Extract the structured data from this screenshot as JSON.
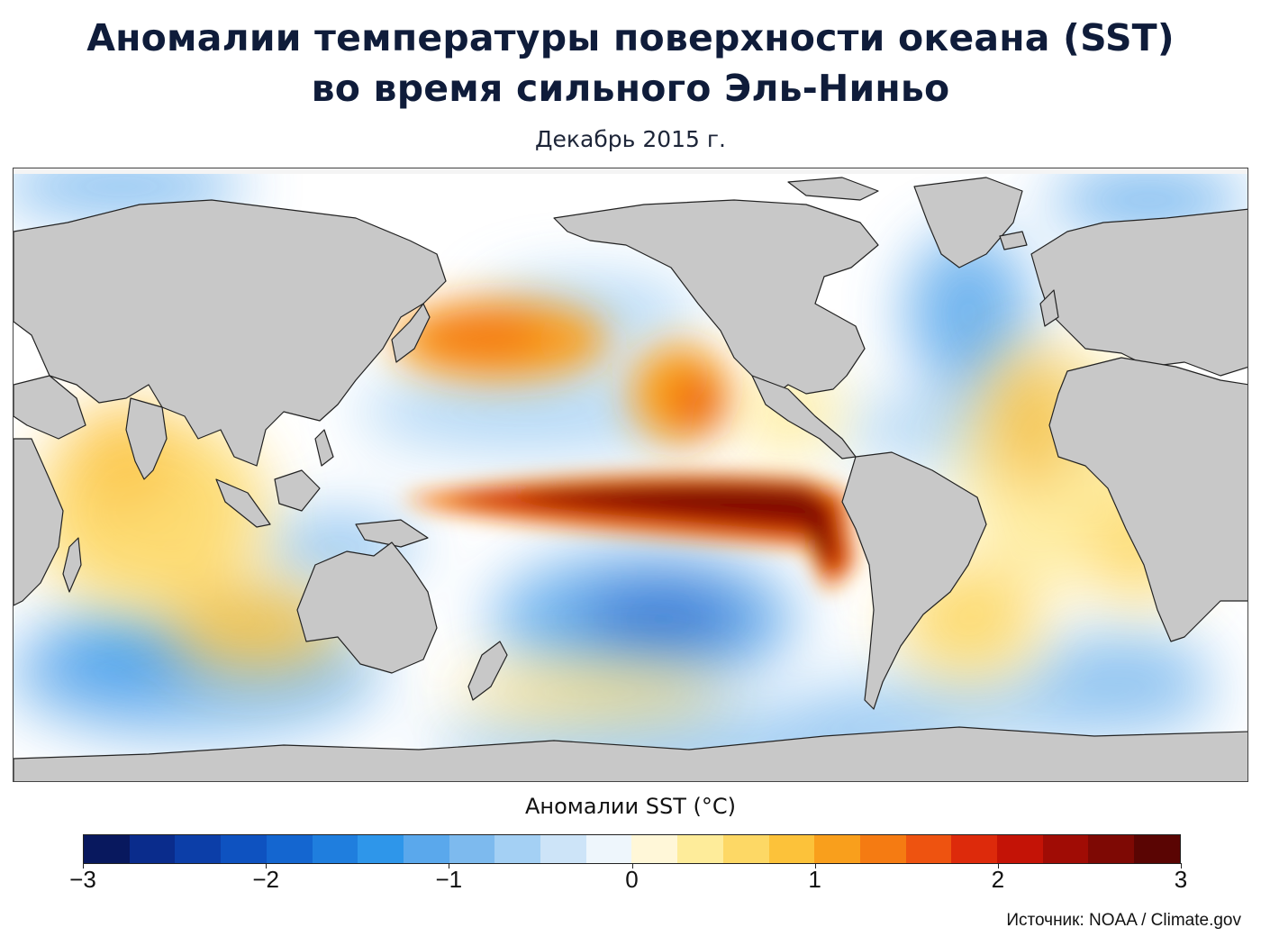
{
  "title": {
    "line1": "Аномалии температуры поверхности океана (SST)",
    "line2": "во время сильного Эль-Ниньо"
  },
  "subtitle": "Декабрь 2015 г.",
  "map": {
    "land_color": "#c8c8c8",
    "ocean_neutral": "#ffffff"
  },
  "colorbar": {
    "title": "Аномалии SST (°C)",
    "range": [
      -3,
      3
    ],
    "ticks": [
      "−3",
      "−2",
      "−1",
      "0",
      "1",
      "2",
      "3"
    ],
    "bin_colors": [
      "#08185e",
      "#0a2c8c",
      "#0c3ea8",
      "#0e52c0",
      "#1466d0",
      "#1f7ede",
      "#2e96ea",
      "#5aa8ec",
      "#7dbaee",
      "#a4d0f4",
      "#cde4f8",
      "#eef6fc",
      "#fff7d8",
      "#feec9a",
      "#fdd865",
      "#fcc23a",
      "#f99f1c",
      "#f57b12",
      "#ee5310",
      "#dd2a0b",
      "#c41306",
      "#a00c05",
      "#7e0904",
      "#5a0503"
    ]
  },
  "source": "Источник: NOAA / Climate.gov"
}
